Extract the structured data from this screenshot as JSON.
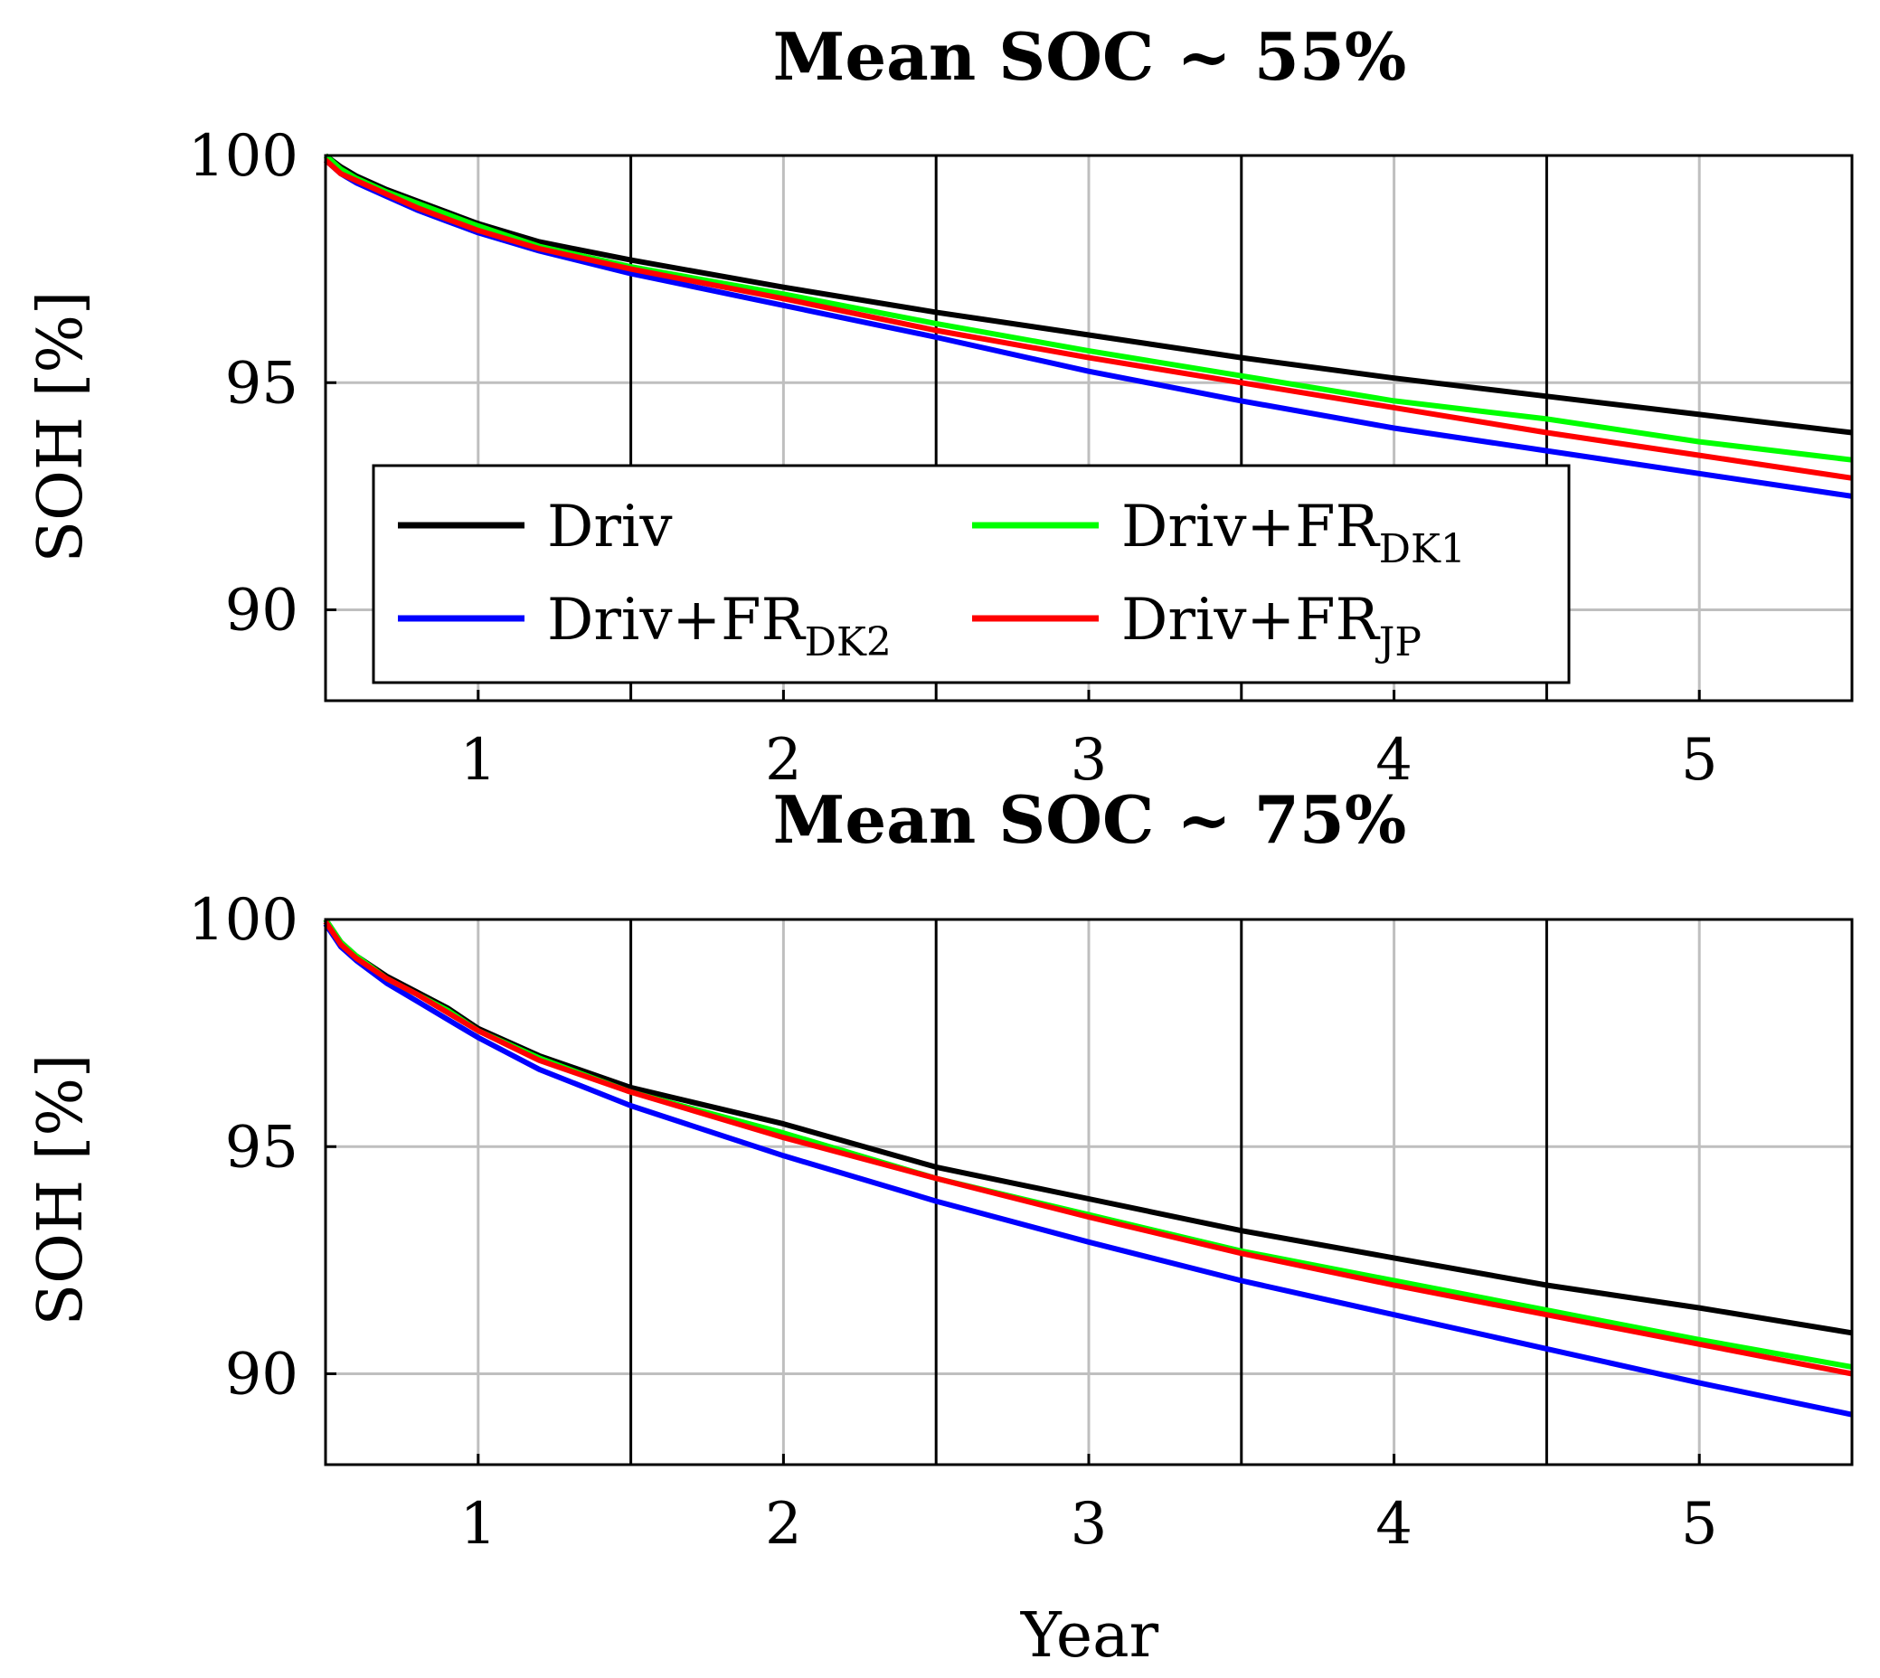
{
  "chart_data": [
    {
      "type": "line",
      "title": "Mean SOC ~ 55%",
      "xlabel": "",
      "ylabel": "SOH [%]",
      "xlim": [
        0.5,
        5.5
      ],
      "ylim": [
        88,
        100
      ],
      "xticks": [
        "1",
        "2",
        "3",
        "4",
        "5"
      ],
      "yticks": [
        "90",
        "95",
        "100"
      ],
      "grid": true,
      "vlines": [
        1.5,
        2.5,
        3.5,
        4.5
      ],
      "x": [
        0.5,
        0.55,
        0.6,
        0.7,
        0.8,
        0.9,
        1.0,
        1.2,
        1.5,
        2.0,
        2.5,
        3.0,
        3.5,
        4.0,
        4.5,
        5.0,
        5.5
      ],
      "series": [
        {
          "name": "Driv",
          "label_main": "Driv",
          "label_sub": "",
          "color": "#000000",
          "values": [
            100,
            99.75,
            99.55,
            99.25,
            99.0,
            98.75,
            98.5,
            98.1,
            97.7,
            97.1,
            96.55,
            96.05,
            95.55,
            95.1,
            94.7,
            94.3,
            93.9
          ]
        },
        {
          "name": "Driv+FR_DK2",
          "label_main": "Driv+FR",
          "label_sub": "DK2",
          "color": "#0000ff",
          "values": [
            99.9,
            99.6,
            99.4,
            99.1,
            98.8,
            98.55,
            98.3,
            97.9,
            97.4,
            96.7,
            96.0,
            95.25,
            94.6,
            94.0,
            93.5,
            93.0,
            92.5
          ]
        },
        {
          "name": "Driv+FR_DK1",
          "label_main": "Driv+FR",
          "label_sub": "DK1",
          "color": "#00ff00",
          "values": [
            100,
            99.7,
            99.5,
            99.2,
            98.95,
            98.7,
            98.45,
            98.0,
            97.55,
            96.95,
            96.3,
            95.7,
            95.15,
            94.6,
            94.2,
            93.7,
            93.3
          ]
        },
        {
          "name": "Driv+FR_JP",
          "label_main": "Driv+FR",
          "label_sub": "JP",
          "color": "#ff0000",
          "values": [
            99.9,
            99.6,
            99.45,
            99.15,
            98.85,
            98.6,
            98.35,
            97.95,
            97.5,
            96.85,
            96.15,
            95.55,
            95.0,
            94.45,
            93.9,
            93.4,
            92.9
          ]
        }
      ],
      "legend": "inside-left"
    },
    {
      "type": "line",
      "title": "Mean SOC ~ 75%",
      "xlabel": "Year",
      "ylabel": "SOH [%]",
      "xlim": [
        0.5,
        5.5
      ],
      "ylim": [
        88,
        100
      ],
      "xticks": [
        "1",
        "2",
        "3",
        "4",
        "5"
      ],
      "yticks": [
        "90",
        "95",
        "100"
      ],
      "grid": true,
      "vlines": [
        1.5,
        2.5,
        3.5,
        4.5
      ],
      "x": [
        0.5,
        0.55,
        0.6,
        0.7,
        0.8,
        0.9,
        1.0,
        1.2,
        1.5,
        2.0,
        2.5,
        3.0,
        3.5,
        4.0,
        4.5,
        5.0,
        5.5
      ],
      "series": [
        {
          "name": "Driv",
          "color": "#000000",
          "values": [
            100,
            99.5,
            99.2,
            98.75,
            98.4,
            98.05,
            97.6,
            97.0,
            96.3,
            95.5,
            94.55,
            93.85,
            93.15,
            92.55,
            91.95,
            91.45,
            90.9
          ]
        },
        {
          "name": "Driv+FR_DK2",
          "color": "#0000ff",
          "values": [
            99.9,
            99.4,
            99.1,
            98.6,
            98.2,
            97.8,
            97.4,
            96.7,
            95.9,
            94.8,
            93.8,
            92.9,
            92.05,
            91.3,
            90.55,
            89.8,
            89.1
          ]
        },
        {
          "name": "Driv+FR_DK1",
          "color": "#00ff00",
          "values": [
            100,
            99.5,
            99.2,
            98.7,
            98.35,
            98.0,
            97.55,
            96.95,
            96.2,
            95.3,
            94.3,
            93.5,
            92.7,
            92.05,
            91.4,
            90.75,
            90.15
          ]
        },
        {
          "name": "Driv+FR_JP",
          "color": "#ff0000",
          "values": [
            99.95,
            99.45,
            99.15,
            98.7,
            98.35,
            97.95,
            97.55,
            96.9,
            96.2,
            95.2,
            94.3,
            93.45,
            92.65,
            91.95,
            91.3,
            90.65,
            90.0
          ]
        }
      ]
    }
  ]
}
